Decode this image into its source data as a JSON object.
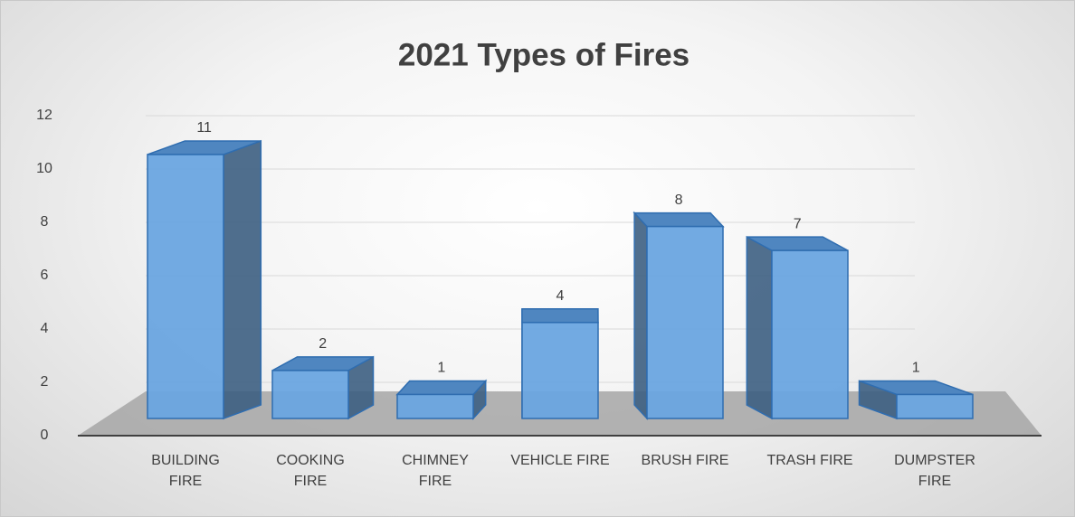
{
  "chart_data": {
    "type": "bar3d",
    "title": "2021 Types of Fires",
    "categories": [
      "BUILDING FIRE",
      "COOKING FIRE",
      "CHIMNEY FIRE",
      "VEHICLE FIRE",
      "BRUSH FIRE",
      "TRASH FIRE",
      "DUMPSTER FIRE"
    ],
    "values": [
      11,
      2,
      1,
      4,
      8,
      7,
      1
    ],
    "color": "#6aa5e0",
    "ylim": [
      0,
      12
    ],
    "yticks": [
      0,
      2,
      4,
      6,
      8,
      10,
      12
    ],
    "grid": true
  }
}
